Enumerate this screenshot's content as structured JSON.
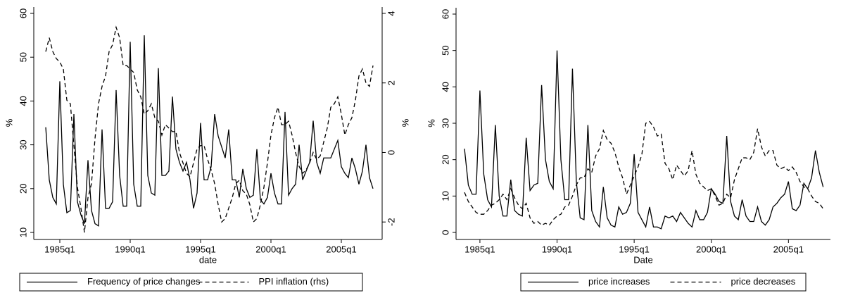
{
  "chart_data": [
    {
      "type": "line",
      "xlabel": "date",
      "ylabel": "%",
      "y2label": "%",
      "categories": [
        null,
        null,
        null,
        null,
        "1985q1",
        null,
        null,
        null,
        null,
        null,
        null,
        null,
        null,
        null,
        null,
        null,
        null,
        null,
        null,
        null,
        null,
        null,
        null,
        null,
        "1990q1",
        null,
        null,
        null,
        null,
        null,
        null,
        null,
        null,
        null,
        null,
        null,
        null,
        null,
        null,
        null,
        null,
        null,
        null,
        null,
        "1995q1",
        null,
        null,
        null,
        null,
        null,
        null,
        null,
        null,
        null,
        null,
        null,
        null,
        null,
        null,
        null,
        null,
        null,
        null,
        null,
        "2000q1",
        null,
        null,
        null,
        null,
        null,
        null,
        null,
        null,
        null,
        null,
        null,
        null,
        null,
        null,
        null,
        null,
        null,
        null,
        null,
        "2005q1",
        null,
        null,
        null,
        null,
        null,
        null,
        null,
        null,
        null
      ],
      "ylim": [
        10,
        60
      ],
      "yticks": [
        10,
        20,
        30,
        40,
        50,
        60
      ],
      "y2lim": [
        -2.3,
        4
      ],
      "y2ticks": [
        -2,
        0,
        2,
        4
      ],
      "legend": "bottom",
      "series": [
        {
          "name": "Frequency of price changes",
          "color": "#000000",
          "dash": "solid",
          "values": [
            34,
            22,
            18,
            16.5,
            44.5,
            21,
            14.5,
            15,
            37,
            17,
            14,
            12,
            26.5,
            15,
            12,
            11.5,
            33.5,
            15.5,
            15.5,
            17,
            42.5,
            23,
            16,
            16,
            53.5,
            21,
            16,
            16,
            55,
            23,
            19,
            18.5,
            47.5,
            23,
            23,
            24,
            41,
            29,
            26,
            24,
            26,
            22,
            15.5,
            19,
            35,
            22,
            22,
            25,
            37,
            32,
            29.5,
            27,
            33.5,
            22,
            22,
            18,
            24.5,
            20,
            18,
            18.5,
            29,
            17.5,
            16.5,
            18,
            23.5,
            19,
            16.5,
            16.5,
            37.5,
            18.5,
            20,
            21,
            30,
            22,
            24,
            26,
            35.5,
            26,
            23.5,
            27,
            27,
            27,
            29,
            31,
            25,
            23.5,
            22.5,
            27,
            24.5,
            21,
            24,
            30,
            22.5,
            20
          ]
        },
        {
          "name": "PPI inflation (rhs)",
          "color": "#000000",
          "dash": "dashed",
          "axis": "y2",
          "values": [
            2.9,
            3.3,
            2.9,
            2.7,
            2.6,
            2.4,
            1.5,
            1.4,
            0.2,
            -1.0,
            -1.6,
            -2.3,
            -1.3,
            -0.9,
            0.4,
            1.4,
            1.9,
            2.2,
            2.9,
            3.1,
            3.6,
            3.3,
            2.5,
            2.5,
            2.4,
            2.3,
            1.8,
            1.6,
            1.1,
            1.2,
            1.4,
            1.0,
            0.9,
            0.5,
            0.8,
            0.7,
            0.6,
            0.6,
            0.0,
            -0.3,
            -0.6,
            -0.7,
            -0.3,
            0.1,
            0.2,
            0.2,
            -0.2,
            -0.5,
            -0.9,
            -1.5,
            -2.0,
            -1.9,
            -1.6,
            -1.3,
            -0.9,
            -0.8,
            -1.1,
            -1.2,
            -1.5,
            -2.0,
            -1.9,
            -1.5,
            -1.0,
            -0.3,
            0.5,
            1.0,
            1.3,
            0.8,
            0.8,
            0.9,
            0.5,
            0.0,
            -0.4,
            -0.6,
            -0.5,
            -0.3,
            0.0,
            -0.2,
            -0.1,
            0.3,
            0.7,
            1.3,
            1.4,
            1.6,
            1.1,
            0.5,
            0.8,
            1.0,
            1.5,
            2.2,
            2.4,
            2.0,
            1.9,
            2.5
          ]
        }
      ]
    },
    {
      "type": "line",
      "xlabel": "Date",
      "ylabel": "%",
      "categories": [
        null,
        null,
        null,
        null,
        "1985q1",
        null,
        null,
        null,
        null,
        null,
        null,
        null,
        null,
        null,
        null,
        null,
        null,
        null,
        null,
        null,
        null,
        null,
        null,
        null,
        "1990q1",
        null,
        null,
        null,
        null,
        null,
        null,
        null,
        null,
        null,
        null,
        null,
        null,
        null,
        null,
        null,
        null,
        null,
        null,
        null,
        "1995q1",
        null,
        null,
        null,
        null,
        null,
        null,
        null,
        null,
        null,
        null,
        null,
        null,
        null,
        null,
        null,
        null,
        null,
        null,
        null,
        "2000q1",
        null,
        null,
        null,
        null,
        null,
        null,
        null,
        null,
        null,
        null,
        null,
        null,
        null,
        null,
        null,
        null,
        null,
        null,
        null,
        "2005q1",
        null,
        null,
        null,
        null,
        null,
        null,
        null,
        null,
        null
      ],
      "ylim": [
        0,
        60
      ],
      "yticks": [
        0,
        10,
        20,
        30,
        40,
        50,
        60
      ],
      "legend": "bottom",
      "series": [
        {
          "name": "price increases",
          "color": "#000000",
          "dash": "solid",
          "values": [
            23,
            13,
            10.5,
            10.5,
            39,
            16,
            9,
            7,
            29.5,
            10,
            4.5,
            4.5,
            14.5,
            6,
            5,
            4.5,
            26,
            11.5,
            13,
            13.5,
            40.5,
            20,
            14,
            12,
            50,
            20,
            9,
            9,
            45,
            14,
            4,
            3.5,
            29.5,
            6,
            3,
            1.5,
            12.5,
            4,
            2,
            1.5,
            7,
            5,
            5.5,
            8,
            21.5,
            5.5,
            3.5,
            1.5,
            7,
            1.5,
            1.5,
            1,
            4.5,
            4,
            4.5,
            3,
            5.5,
            4,
            2.5,
            1.5,
            6,
            3.5,
            3.5,
            5.5,
            12,
            10.5,
            8.5,
            8,
            26.5,
            8.5,
            4.5,
            3.5,
            9,
            4.5,
            3,
            3,
            7,
            3,
            2,
            3.5,
            7,
            8,
            9.5,
            10.5,
            14,
            6.5,
            6,
            7.5,
            13.5,
            12,
            15,
            22.5,
            16.5,
            12.5
          ]
        },
        {
          "name": "price decreases",
          "color": "#000000",
          "dash": "dashed",
          "values": [
            11,
            8.5,
            7,
            5.5,
            5,
            5,
            6,
            7.5,
            8,
            9,
            10.5,
            9,
            12,
            9.5,
            7.5,
            6.5,
            8,
            4,
            2.5,
            3,
            2,
            2.5,
            2,
            3.5,
            4.5,
            5,
            7,
            7.5,
            10,
            13,
            15,
            15,
            17.5,
            16.5,
            21,
            23,
            28,
            25.5,
            24.5,
            22,
            18,
            15,
            10.5,
            13,
            15.5,
            18,
            21.5,
            30,
            30.5,
            29,
            26.5,
            27,
            19,
            17.5,
            14.5,
            18.5,
            17,
            15.5,
            17,
            22.5,
            16,
            13.5,
            12.5,
            11.5,
            12,
            10,
            7.5,
            8,
            10.5,
            9.5,
            14.5,
            17.5,
            20.5,
            20.5,
            20,
            22,
            28.5,
            23.5,
            21,
            22.5,
            22.5,
            18.5,
            17.5,
            18,
            17,
            18,
            16.5,
            14,
            12.5,
            12,
            10,
            8.5,
            8,
            6.5
          ]
        }
      ]
    }
  ]
}
